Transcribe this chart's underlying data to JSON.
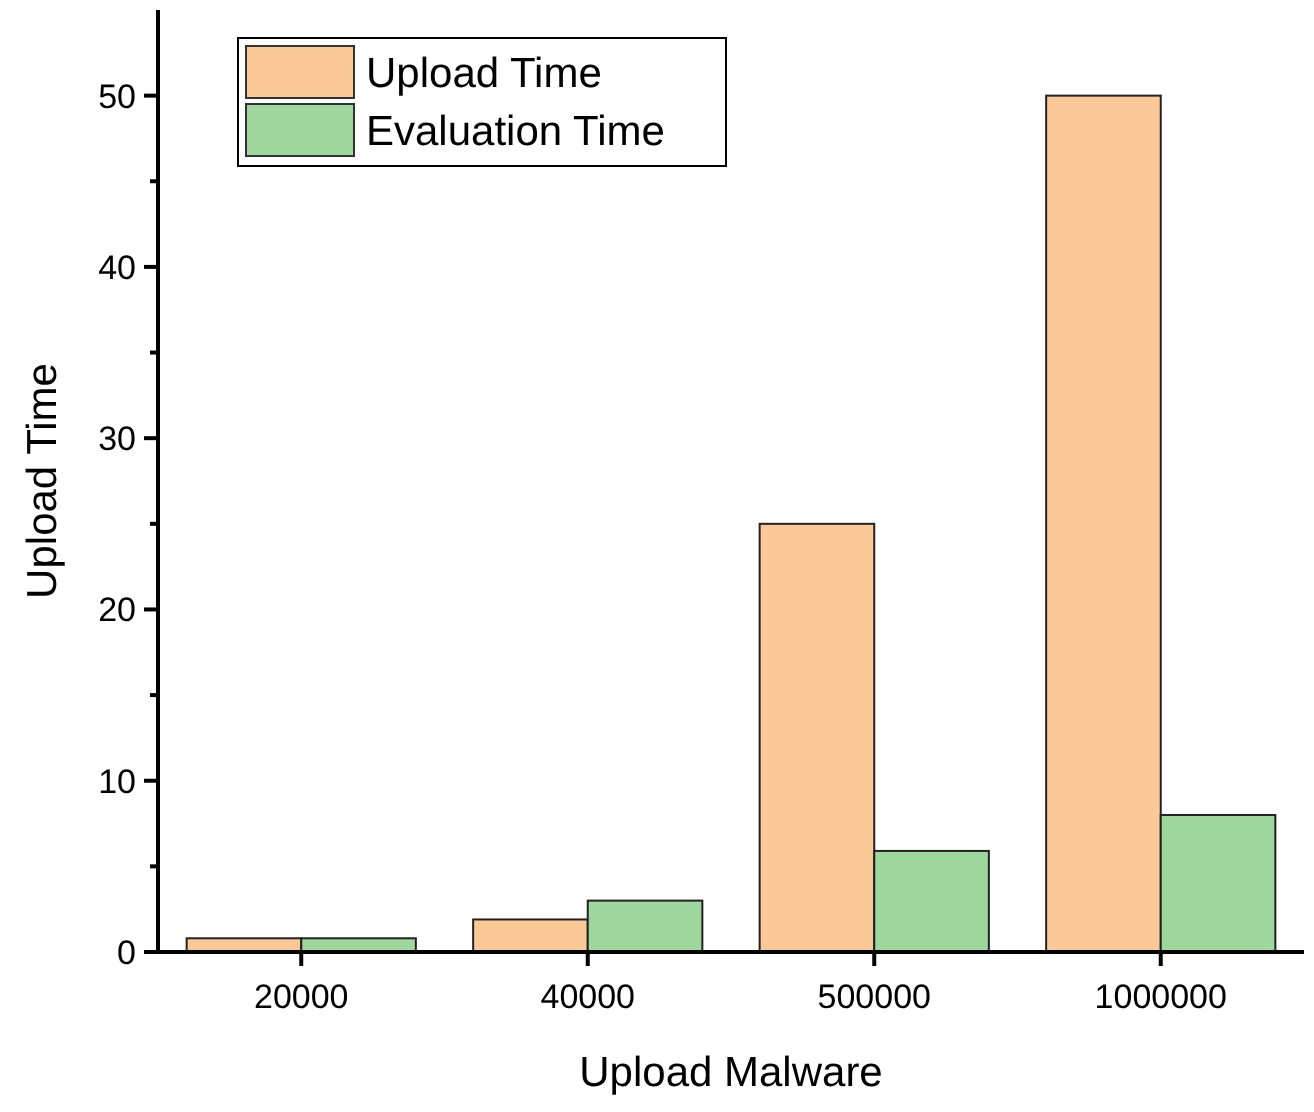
{
  "chart_data": {
    "type": "bar",
    "xlabel": "Upload Malware",
    "ylabel": "Upload Time",
    "categories": [
      "20000",
      "40000",
      "500000",
      "1000000"
    ],
    "series": [
      {
        "name": "Upload Time",
        "color": "#fbc898",
        "values": [
          0.8,
          1.9,
          25,
          50
        ]
      },
      {
        "name": "Evaluation Time",
        "color": "#9fd89d",
        "values": [
          0.8,
          3,
          5.9,
          8
        ]
      }
    ],
    "ylim": [
      0,
      55
    ],
    "yticks": [
      0,
      {
        "value": 5,
        "label": null
      },
      10,
      {
        "value": 15,
        "label": null
      },
      20,
      {
        "value": 25,
        "label": null
      },
      30,
      {
        "value": 35,
        "label": null
      },
      40,
      {
        "value": 45,
        "label": null
      },
      50
    ],
    "grid": false,
    "legend": "top left"
  }
}
